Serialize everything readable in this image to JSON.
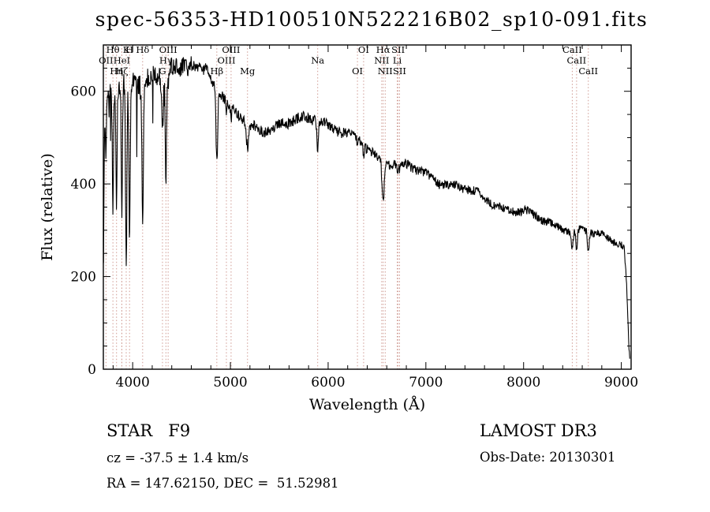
{
  "page": {
    "background": "#ffffff"
  },
  "chart_data": {
    "type": "line",
    "title": "spec-56353-HD100510N522216B02_sp10-091.fits",
    "xlabel": "Wavelength (Å)",
    "ylabel": "Flux (relative)",
    "xlim": [
      3700,
      9100
    ],
    "ylim": [
      0,
      700
    ],
    "xticks": [
      4000,
      5000,
      6000,
      7000,
      8000,
      9000
    ],
    "yticks": [
      0,
      200,
      400,
      600
    ],
    "x_minor_step": 200,
    "y_minor_step": 50,
    "grid": false,
    "line_color": "#000000",
    "marker_color": "#cf9a92",
    "marker_label_color": "#5f2d22",
    "noise_blue": 22,
    "noise_red": 13,
    "continuum": [
      [
        3700,
        180
      ],
      [
        3712,
        520
      ],
      [
        3725,
        575
      ],
      [
        3750,
        590
      ],
      [
        3800,
        600
      ],
      [
        3850,
        605
      ],
      [
        3900,
        612
      ],
      [
        3950,
        618
      ],
      [
        4000,
        625
      ],
      [
        4050,
        620
      ],
      [
        4100,
        622
      ],
      [
        4150,
        632
      ],
      [
        4200,
        640
      ],
      [
        4250,
        636
      ],
      [
        4300,
        632
      ],
      [
        4350,
        645
      ],
      [
        4400,
        650
      ],
      [
        4450,
        645
      ],
      [
        4500,
        648
      ],
      [
        4550,
        655
      ],
      [
        4600,
        660
      ],
      [
        4650,
        655
      ],
      [
        4700,
        648
      ],
      [
        4750,
        652
      ],
      [
        4800,
        632
      ],
      [
        4850,
        612
      ],
      [
        4900,
        590
      ],
      [
        4950,
        572
      ],
      [
        5000,
        560
      ],
      [
        5050,
        552
      ],
      [
        5100,
        545
      ],
      [
        5150,
        536
      ],
      [
        5200,
        528
      ],
      [
        5250,
        526
      ],
      [
        5300,
        524
      ],
      [
        5350,
        521
      ],
      [
        5400,
        520
      ],
      [
        5450,
        522
      ],
      [
        5500,
        525
      ],
      [
        5550,
        528
      ],
      [
        5600,
        530
      ],
      [
        5650,
        533
      ],
      [
        5700,
        536
      ],
      [
        5750,
        539
      ],
      [
        5800,
        542
      ],
      [
        5850,
        545
      ],
      [
        5900,
        546
      ],
      [
        5950,
        538
      ],
      [
        6000,
        530
      ],
      [
        6050,
        522
      ],
      [
        6100,
        515
      ],
      [
        6150,
        510
      ],
      [
        6200,
        505
      ],
      [
        6250,
        498
      ],
      [
        6300,
        492
      ],
      [
        6350,
        485
      ],
      [
        6400,
        478
      ],
      [
        6450,
        470
      ],
      [
        6500,
        462
      ],
      [
        6550,
        455
      ],
      [
        6600,
        450
      ],
      [
        6650,
        447
      ],
      [
        6700,
        445
      ],
      [
        6750,
        442
      ],
      [
        6800,
        438
      ],
      [
        6850,
        433
      ],
      [
        6900,
        428
      ],
      [
        6950,
        424
      ],
      [
        7000,
        420
      ],
      [
        7100,
        410
      ],
      [
        7200,
        403
      ],
      [
        7300,
        395
      ],
      [
        7400,
        388
      ],
      [
        7500,
        378
      ],
      [
        7600,
        370
      ],
      [
        7700,
        358
      ],
      [
        7800,
        350
      ],
      [
        7900,
        344
      ],
      [
        8000,
        338
      ],
      [
        8100,
        328
      ],
      [
        8200,
        322
      ],
      [
        8300,
        313
      ],
      [
        8400,
        308
      ],
      [
        8500,
        300
      ],
      [
        8600,
        297
      ],
      [
        8700,
        292
      ],
      [
        8800,
        288
      ],
      [
        8900,
        282
      ],
      [
        9000,
        275
      ],
      [
        9030,
        268
      ],
      [
        9055,
        180
      ],
      [
        9075,
        60
      ],
      [
        9085,
        25
      ]
    ],
    "spectral_lines": [
      {
        "label": "Hθ",
        "wavelength": 3798,
        "row": 1,
        "depth": 260,
        "sigma": 6
      },
      {
        "label": "K",
        "wavelength": 3934,
        "row": 1,
        "depth": 390,
        "sigma": 7
      },
      {
        "label": "H",
        "wavelength": 3968,
        "row": 1,
        "depth": 330,
        "sigma": 7
      },
      {
        "label": "Hδ",
        "wavelength": 4102,
        "row": 1,
        "depth": 300,
        "sigma": 7
      },
      {
        "label": "OIII",
        "wavelength": 4363,
        "row": 1,
        "depth": 30,
        "sigma": 5
      },
      {
        "label": "OIII",
        "wavelength": 5007,
        "row": 1,
        "depth": 25,
        "sigma": 5
      },
      {
        "label": "OI",
        "wavelength": 6363,
        "row": 1,
        "depth": 20,
        "sigma": 5
      },
      {
        "label": "Hα",
        "wavelength": 6563,
        "row": 1,
        "depth": 85,
        "sigma": 10
      },
      {
        "label": "SII",
        "wavelength": 6716,
        "row": 1,
        "depth": 15,
        "sigma": 5
      },
      {
        "label": "CaII",
        "wavelength": 8498,
        "row": 1,
        "depth": 40,
        "sigma": 8
      },
      {
        "label": "OII",
        "wavelength": 3727,
        "row": 2,
        "depth": 120,
        "sigma": 5
      },
      {
        "label": "HeI",
        "wavelength": 3889,
        "row": 2,
        "depth": 140,
        "sigma": 6
      },
      {
        "label": "Hγ",
        "wavelength": 4340,
        "row": 2,
        "depth": 230,
        "sigma": 7
      },
      {
        "label": "OIII",
        "wavelength": 4959,
        "row": 2,
        "depth": 20,
        "sigma": 5
      },
      {
        "label": "Na",
        "wavelength": 5893,
        "row": 2,
        "depth": 65,
        "sigma": 8
      },
      {
        "label": "NII",
        "wavelength": 6548,
        "row": 2,
        "depth": 20,
        "sigma": 5
      },
      {
        "label": "Li",
        "wavelength": 6707,
        "row": 2,
        "depth": 15,
        "sigma": 5
      },
      {
        "label": "CaII",
        "wavelength": 8542,
        "row": 2,
        "depth": 45,
        "sigma": 8
      },
      {
        "label": "Hη",
        "wavelength": 3835,
        "row": 3,
        "depth": 250,
        "sigma": 6
      },
      {
        "label": "Hζ",
        "wavelength": 3889,
        "row": 3,
        "depth": 140,
        "sigma": 6
      },
      {
        "label": "G",
        "wavelength": 4305,
        "row": 3,
        "depth": 110,
        "sigma": 9
      },
      {
        "label": "Hβ",
        "wavelength": 4861,
        "row": 3,
        "depth": 150,
        "sigma": 9
      },
      {
        "label": "Mg",
        "wavelength": 5175,
        "row": 3,
        "depth": 55,
        "sigma": 12
      },
      {
        "label": "OI",
        "wavelength": 6300,
        "row": 3,
        "depth": 25,
        "sigma": 5
      },
      {
        "label": "NII",
        "wavelength": 6584,
        "row": 3,
        "depth": 15,
        "sigma": 5
      },
      {
        "label": "SII",
        "wavelength": 6731,
        "row": 3,
        "depth": 15,
        "sigma": 5
      },
      {
        "label": "CaII",
        "wavelength": 8662,
        "row": 3,
        "depth": 40,
        "sigma": 8
      }
    ]
  },
  "footer": {
    "class_label": "STAR   F9",
    "cz": "cz = -37.5 ± 1.4 km/s",
    "radec": "RA = 147.62150, DEC =  51.52981",
    "survey": "LAMOST DR3",
    "obs_date": "Obs-Date: 20130301"
  }
}
